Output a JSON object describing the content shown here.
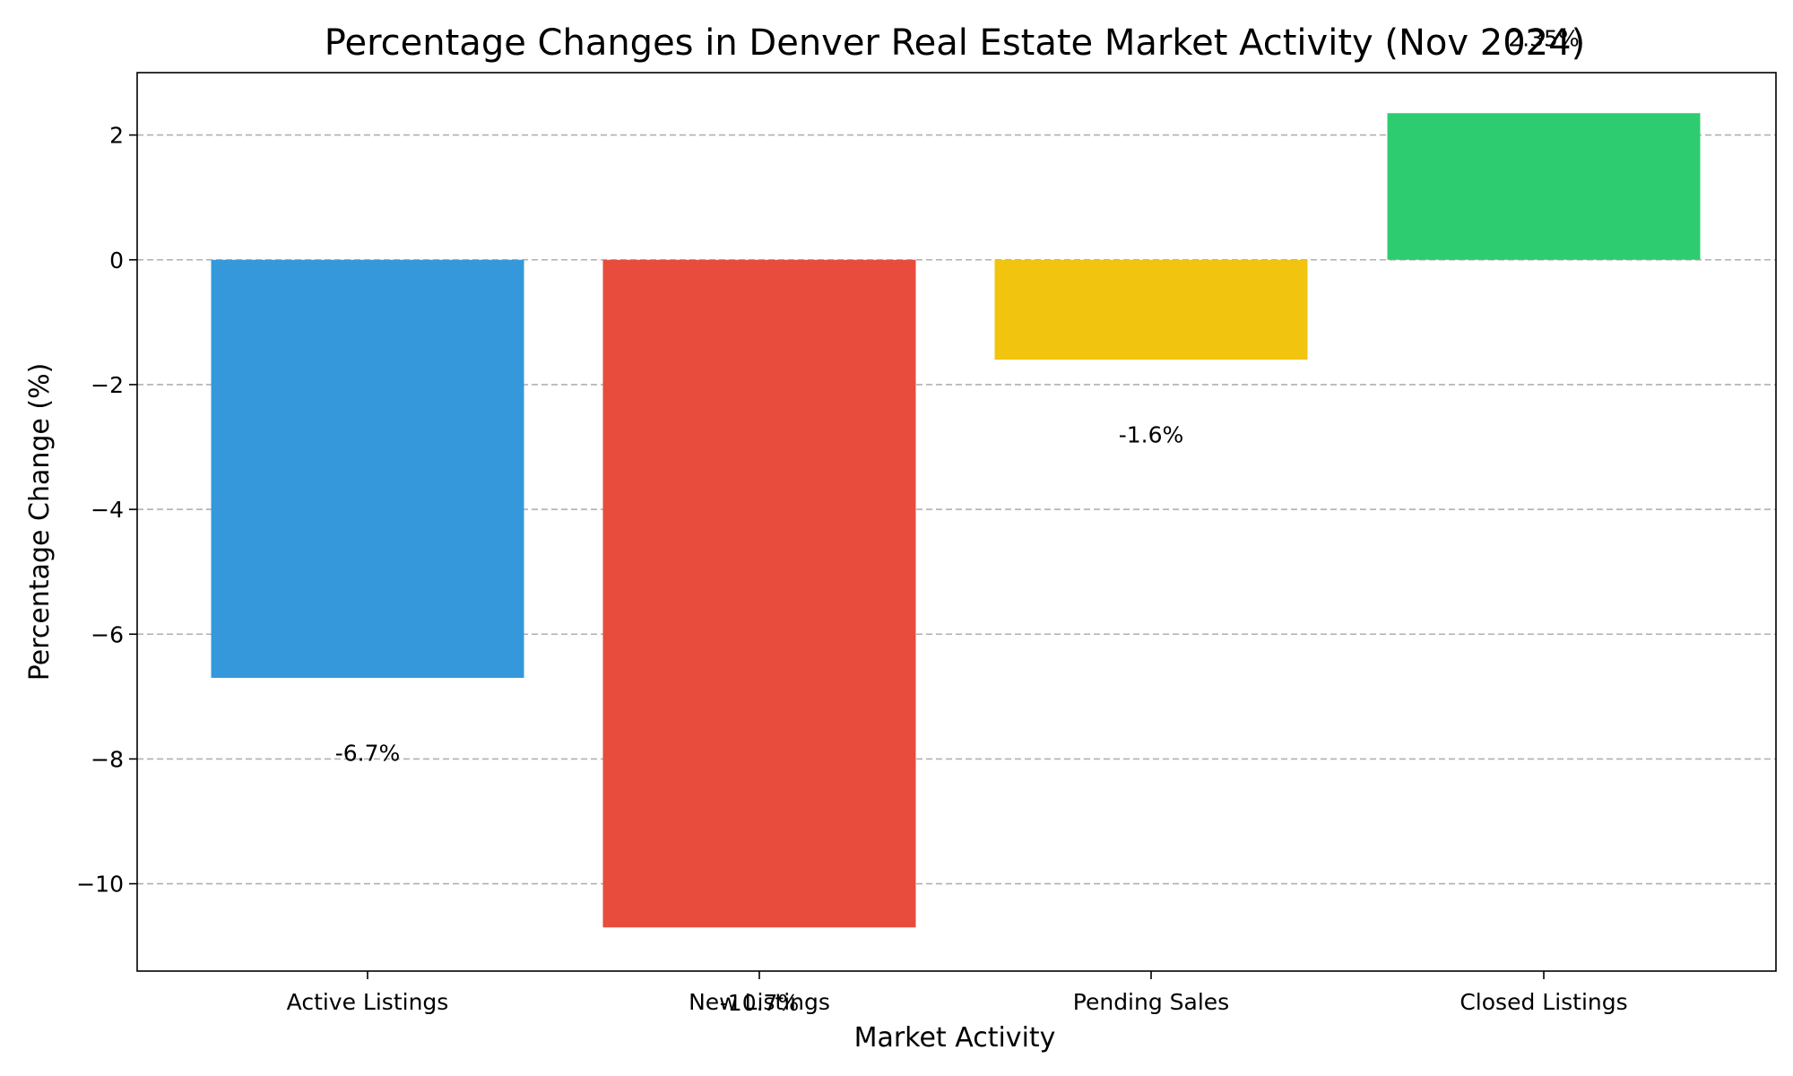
{
  "chart_data": {
    "type": "bar",
    "title": "Percentage Changes in Denver Real Estate Market Activity (Nov 2024)",
    "xlabel": "Market Activity",
    "ylabel": "Percentage Change (%)",
    "categories": [
      "Active Listings",
      "New Listings",
      "Pending Sales",
      "Closed Listings"
    ],
    "values": [
      -6.7,
      -10.7,
      -1.6,
      2.35
    ],
    "data_labels": [
      "-6.7%",
      "-10.7%",
      "-1.6%",
      "2.35%"
    ],
    "colors": [
      "#3498db",
      "#e74c3c",
      "#f1c40f",
      "#2ecc71"
    ],
    "ylim": [
      -11.4,
      3.0
    ],
    "yticks": [
      2,
      0,
      -2,
      -4,
      -6,
      -8,
      -10
    ],
    "ytick_labels": [
      "2",
      "0",
      "−2",
      "−4",
      "−6",
      "−8",
      "−10"
    ],
    "grid": "y-dashed",
    "legend": "none"
  }
}
